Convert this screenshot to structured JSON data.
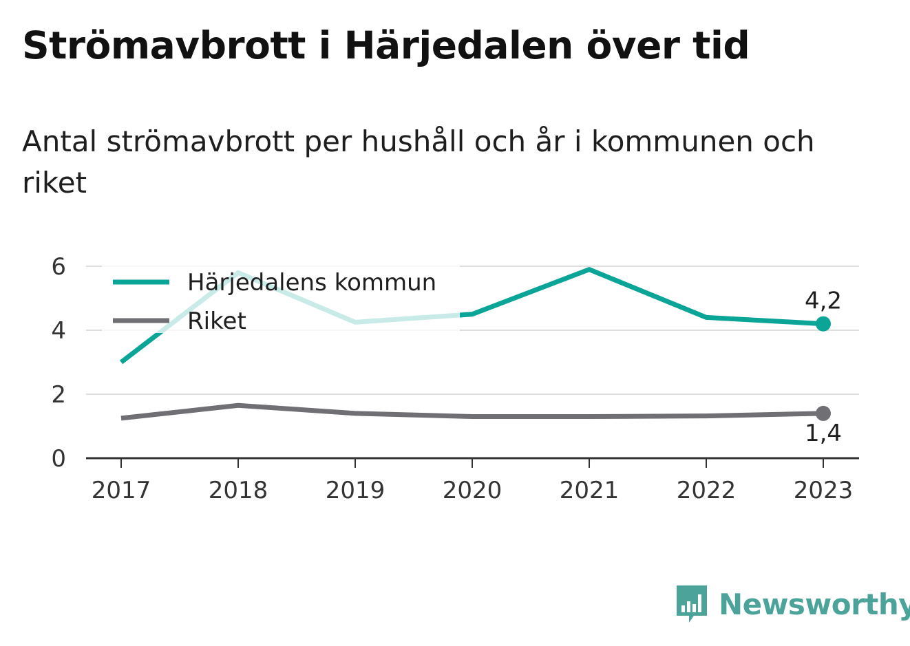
{
  "title": "Strömavbrott i Härjedalen över tid",
  "subtitle": "Antal strömavbrott per hushåll och år i kommunen och riket",
  "brand": {
    "name": "Newsworthy",
    "icon": "newsworthy-logo-icon"
  },
  "colors": {
    "kommun": "#0aa597",
    "riket": "#6f6f74",
    "grid": "#dddddd",
    "axis": "#333333",
    "brand": "#4ba39a"
  },
  "chart_data": {
    "type": "line",
    "x": [
      "2017",
      "2018",
      "2019",
      "2020",
      "2021",
      "2022",
      "2023"
    ],
    "ylim": [
      0,
      6
    ],
    "yticks": [
      0,
      2,
      4,
      6
    ],
    "grid": true,
    "legend_position": "top-left",
    "series": [
      {
        "name": "Härjedalens kommun",
        "values": [
          3.0,
          5.8,
          4.25,
          4.5,
          5.9,
          4.4,
          4.2
        ],
        "end_label": "4,2",
        "end_label_position": "above"
      },
      {
        "name": "Riket",
        "values": [
          1.25,
          1.65,
          1.4,
          1.3,
          1.3,
          1.32,
          1.4
        ],
        "end_label": "1,4",
        "end_label_position": "below"
      }
    ]
  }
}
